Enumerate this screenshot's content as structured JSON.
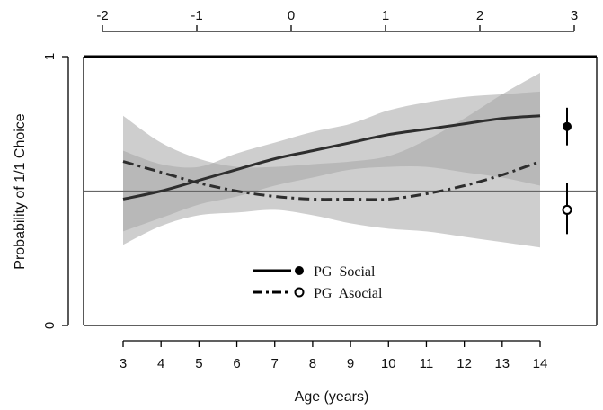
{
  "chart_data": {
    "type": "line",
    "xlabel": "Age (years)",
    "ylabel": "Probability of 1/1 Choice",
    "x_ticks": [
      "3",
      "4",
      "5",
      "6",
      "7",
      "8",
      "9",
      "10",
      "11",
      "12",
      "13",
      "14"
    ],
    "top_ticks": [
      "-2",
      "-1",
      "0",
      "1",
      "2",
      "3"
    ],
    "y_ticks": [
      "0",
      "1"
    ],
    "xlim": [
      3,
      14
    ],
    "ylim": [
      0,
      1
    ],
    "reference_line": 0.5,
    "x": [
      3,
      4,
      5,
      6,
      7,
      8,
      9,
      10,
      11,
      12,
      13,
      14
    ],
    "series": [
      {
        "name": "PG Social",
        "style": "solid",
        "marker": "filled-circle",
        "values": [
          0.47,
          0.5,
          0.54,
          0.58,
          0.62,
          0.65,
          0.68,
          0.71,
          0.73,
          0.75,
          0.77,
          0.78
        ],
        "band_low": [
          0.35,
          0.4,
          0.45,
          0.48,
          0.52,
          0.55,
          0.58,
          0.59,
          0.59,
          0.57,
          0.55,
          0.52
        ],
        "band_high": [
          0.65,
          0.6,
          0.59,
          0.64,
          0.68,
          0.72,
          0.75,
          0.8,
          0.83,
          0.85,
          0.86,
          0.87
        ],
        "summary_point": 0.74,
        "summary_ci": [
          0.67,
          0.81
        ]
      },
      {
        "name": "PG Asocial",
        "style": "dash-dot",
        "marker": "open-circle",
        "values": [
          0.61,
          0.57,
          0.53,
          0.5,
          0.48,
          0.47,
          0.47,
          0.47,
          0.49,
          0.52,
          0.56,
          0.61
        ],
        "band_low": [
          0.3,
          0.37,
          0.41,
          0.42,
          0.43,
          0.41,
          0.38,
          0.36,
          0.35,
          0.33,
          0.31,
          0.29
        ],
        "band_high": [
          0.78,
          0.68,
          0.62,
          0.59,
          0.59,
          0.6,
          0.61,
          0.63,
          0.69,
          0.77,
          0.86,
          0.94
        ],
        "summary_point": 0.43,
        "summary_ci": [
          0.34,
          0.53
        ]
      }
    ],
    "legend": [
      "PG  Social",
      "PG  Asocial"
    ],
    "colors": {
      "band": "#a6a6a6",
      "line": "#2e2e2e",
      "ref": "#666666"
    }
  }
}
